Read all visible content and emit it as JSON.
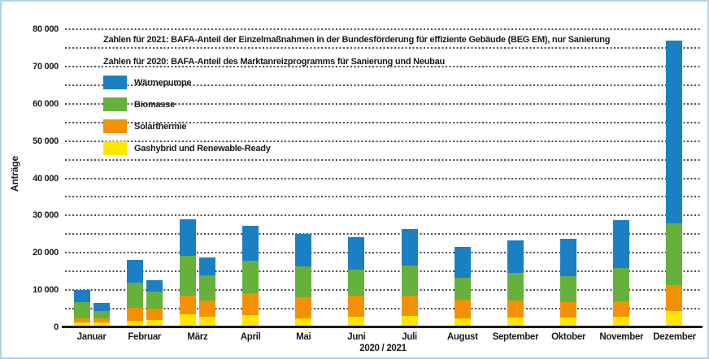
{
  "frame": {
    "border_color": "#aed4ea",
    "background_color": "#ffffff"
  },
  "notes": {
    "line_2021": "Zahlen für 2021: BAFA-Anteil der Einzelmaßnahmen in der Bundesförderung für effiziente Gebäude (BEG EM), nur Sanierung",
    "line_2020": "Zahlen für 2020: BAFA-Anteil des Marktanreizprogramms für Sanierung und Neubau"
  },
  "legend": [
    {
      "label": "Wärmepumpe",
      "color": "#1b7fc4"
    },
    {
      "label": "Biomasse",
      "color": "#65b13c"
    },
    {
      "label": "Solarthermie",
      "color": "#f29104"
    },
    {
      "label": "Gashybrid und Renewable-Ready",
      "color": "#ffe800"
    }
  ],
  "axis": {
    "y_label": "Anträge",
    "x_label": "2020 / 2021",
    "y_tick_labels": [
      "0",
      "10 000",
      "20 000",
      "30 000",
      "40 000",
      "50 000",
      "60 000",
      "70 000",
      "80 000"
    ]
  },
  "chart_data": {
    "type": "bar",
    "stacked": true,
    "title": "",
    "xlabel": "2020 / 2021",
    "ylabel": "Anträge",
    "ylim": [
      0,
      80000
    ],
    "gridline_step": 5000,
    "labeled_tick_step": 10000,
    "grid": "dotted-horizontal",
    "legend_position": "top-left-inside",
    "categories": [
      "Januar 2020",
      "Januar 2021",
      "Februar 2020",
      "Februar 2021",
      "März 2020",
      "März 2021",
      "April 2020",
      "Mai 2020",
      "Juni 2020",
      "Juli 2020",
      "August 2020",
      "September 2020",
      "Oktober 2020",
      "November 2020",
      "Dezember 2020"
    ],
    "groups": [
      {
        "label": "Januar",
        "bar_indices": [
          0,
          1
        ]
      },
      {
        "label": "Februar",
        "bar_indices": [
          2,
          3
        ]
      },
      {
        "label": "März",
        "bar_indices": [
          4,
          5
        ]
      },
      {
        "label": "April",
        "bar_indices": [
          6
        ]
      },
      {
        "label": "Mai",
        "bar_indices": [
          7
        ]
      },
      {
        "label": "Juni",
        "bar_indices": [
          8
        ]
      },
      {
        "label": "Juli",
        "bar_indices": [
          9
        ]
      },
      {
        "label": "August",
        "bar_indices": [
          10
        ]
      },
      {
        "label": "September",
        "bar_indices": [
          11
        ]
      },
      {
        "label": "Oktober",
        "bar_indices": [
          12
        ]
      },
      {
        "label": "November",
        "bar_indices": [
          13
        ]
      },
      {
        "label": "Dezember",
        "bar_indices": [
          14
        ]
      }
    ],
    "series": [
      {
        "name": "Gashybrid und Renewable-Ready",
        "color": "#ffe800",
        "values": [
          1300,
          1300,
          1800,
          2000,
          3400,
          2800,
          3200,
          2400,
          2900,
          3100,
          2400,
          2600,
          2600,
          2800,
          4400
        ]
      },
      {
        "name": "Solarthermie",
        "color": "#f29104",
        "values": [
          1100,
          1100,
          3400,
          3100,
          5200,
          4400,
          6000,
          5600,
          5700,
          5500,
          5000,
          4700,
          4100,
          4200,
          6900
        ]
      },
      {
        "name": "Biomasse",
        "color": "#65b13c",
        "values": [
          4300,
          1900,
          6700,
          4400,
          10600,
          6700,
          8700,
          8300,
          6900,
          7900,
          5800,
          7300,
          7000,
          8900,
          16700
        ]
      },
      {
        "name": "Wärmepumpe",
        "color": "#1b7fc4",
        "values": [
          3300,
          2200,
          6200,
          3100,
          9800,
          4800,
          9400,
          8700,
          8600,
          9800,
          8400,
          8700,
          10000,
          12900,
          49000
        ]
      }
    ],
    "totals": [
      10000,
      6500,
      18100,
      12600,
      29000,
      18700,
      27300,
      25000,
      24100,
      26300,
      21600,
      23300,
      23700,
      28800,
      77000
    ]
  }
}
